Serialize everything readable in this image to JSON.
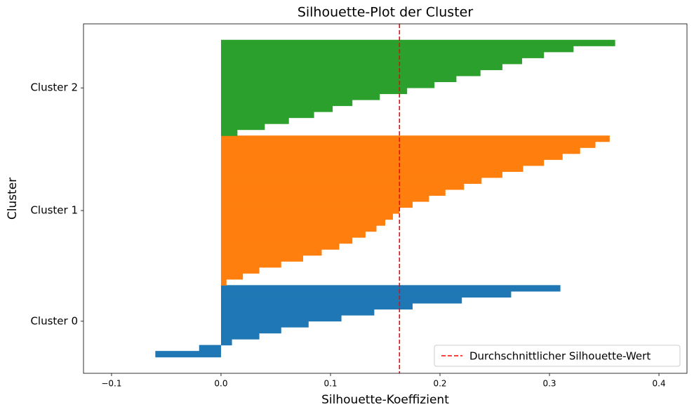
{
  "chart_data": {
    "type": "silhouette",
    "title": "Silhouette-Plot der Cluster",
    "xlabel": "Silhouette-Koeffizient",
    "ylabel": "Cluster",
    "xlim": [
      -0.1256,
      0.4256
    ],
    "xticks": [
      {
        "value": -0.1,
        "label": "−0.1"
      },
      {
        "value": 0,
        "label": "0.0"
      },
      0.1,
      0.2,
      0.3,
      0.4
    ],
    "ylim": [
      -2.7,
      55.7
    ],
    "yticks": [
      {
        "value": 6,
        "label": "Cluster 0"
      },
      {
        "value": 24.5,
        "label": "Cluster 1"
      },
      {
        "value": 45,
        "label": "Cluster 2"
      }
    ],
    "series": [
      {
        "color": "#1f77b4",
        "values": [
          -0.06,
          -0.02,
          0.01,
          0.035,
          0.055,
          0.08,
          0.11,
          0.14,
          0.175,
          0.22,
          0.265,
          0.31
        ]
      },
      {
        "color": "#ff7f0e",
        "values": [
          0.005,
          0.02,
          0.035,
          0.055,
          0.075,
          0.092,
          0.108,
          0.12,
          0.132,
          0.142,
          0.15,
          0.157,
          0.163,
          0.175,
          0.19,
          0.205,
          0.222,
          0.238,
          0.257,
          0.276,
          0.295,
          0.312,
          0.328,
          0.342,
          0.355
        ]
      },
      {
        "color": "#2ca02c",
        "values": [
          0.015,
          0.04,
          0.062,
          0.085,
          0.102,
          0.12,
          0.145,
          0.17,
          0.195,
          0.215,
          0.237,
          0.257,
          0.275,
          0.295,
          0.322,
          0.36
        ]
      }
    ],
    "reference_line": {
      "name": "Durchschnittlicher Silhouette-Wert",
      "value": 0.163,
      "color": "#ff0000"
    },
    "legend": "lower right"
  }
}
